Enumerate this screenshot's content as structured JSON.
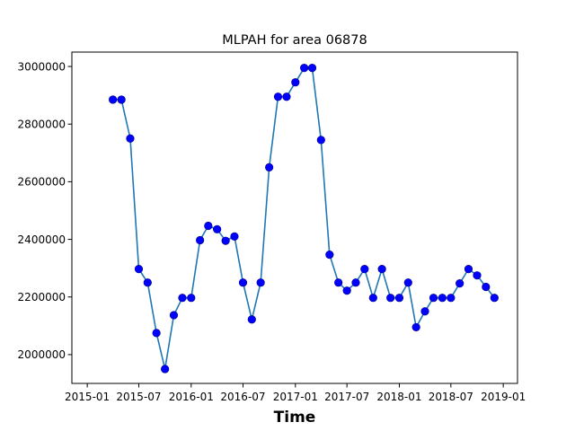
{
  "chart_data": {
    "type": "line",
    "title": "MLPAH for area 06878",
    "xlabel": "Time",
    "ylabel": "",
    "x_tick_labels": [
      "2015-01",
      "2015-07",
      "2016-01",
      "2016-07",
      "2017-01",
      "2017-07",
      "2018-01",
      "2018-07",
      "2019-01"
    ],
    "y_tick_labels": [
      "2000000",
      "2200000",
      "2400000",
      "2600000",
      "2800000",
      "3000000"
    ],
    "xlim": [
      "2014-11-08",
      "2019-02-20"
    ],
    "ylim": [
      1900000,
      3050000
    ],
    "grid": false,
    "colors": {
      "line": "#1f77b4",
      "marker": "#0000ff"
    },
    "series": [
      {
        "x": [
          "2015-04-01",
          "2015-05-01",
          "2015-06-01",
          "2015-07-01",
          "2015-08-01",
          "2015-09-01",
          "2015-10-01",
          "2015-11-01",
          "2015-12-01",
          "2016-01-01",
          "2016-02-01",
          "2016-03-01",
          "2016-04-01",
          "2016-05-01",
          "2016-06-01",
          "2016-07-01",
          "2016-08-01",
          "2016-09-01",
          "2016-10-01",
          "2016-11-01",
          "2016-12-01",
          "2017-01-01",
          "2017-02-01",
          "2017-03-01",
          "2017-04-01",
          "2017-05-01",
          "2017-06-01",
          "2017-07-01",
          "2017-08-01",
          "2017-09-01",
          "2017-10-01",
          "2017-11-01",
          "2017-12-01",
          "2018-01-01",
          "2018-02-01",
          "2018-03-01",
          "2018-04-01",
          "2018-05-01",
          "2018-06-01",
          "2018-07-01",
          "2018-08-01",
          "2018-09-01",
          "2018-10-01",
          "2018-11-01",
          "2018-12-01"
        ],
        "values": [
          2885000,
          2885000,
          2750000,
          2297000,
          2250000,
          2075000,
          1950000,
          2137000,
          2197000,
          2197000,
          2397000,
          2447000,
          2435000,
          2395000,
          2410000,
          2250000,
          2122000,
          2250000,
          2650000,
          2895000,
          2895000,
          2945000,
          2995000,
          2995000,
          2745000,
          2347000,
          2250000,
          2222000,
          2250000,
          2297000,
          2197000,
          2297000,
          2197000,
          2197000,
          2250000,
          2095000,
          2150000,
          2197000,
          2197000,
          2197000,
          2247000,
          2297000,
          2275000,
          2235000,
          2197000
        ]
      }
    ]
  }
}
